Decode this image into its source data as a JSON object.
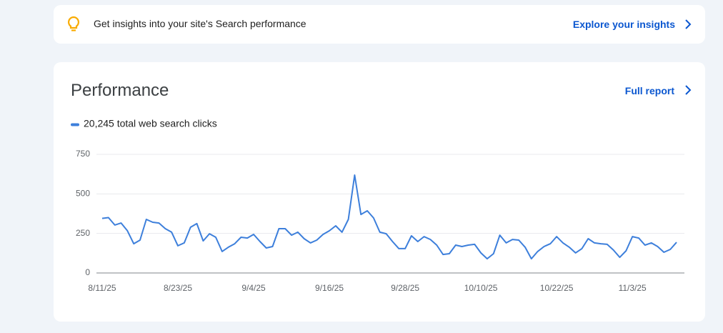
{
  "banner": {
    "text": "Get insights into your site's Search performance",
    "link": "Explore your insights"
  },
  "card": {
    "title": "Performance",
    "link": "Full report"
  },
  "chart_data": {
    "type": "line",
    "categories": [
      "8/11/25",
      null,
      null,
      null,
      null,
      null,
      null,
      null,
      null,
      null,
      null,
      null,
      "8/23/25",
      null,
      null,
      null,
      null,
      null,
      null,
      null,
      null,
      null,
      null,
      null,
      "9/4/25",
      null,
      null,
      null,
      null,
      null,
      null,
      null,
      null,
      null,
      null,
      null,
      "9/16/25",
      null,
      null,
      null,
      null,
      null,
      null,
      null,
      null,
      null,
      null,
      null,
      "9/28/25",
      null,
      null,
      null,
      null,
      null,
      null,
      null,
      null,
      null,
      null,
      null,
      "10/10/25",
      null,
      null,
      null,
      null,
      null,
      null,
      null,
      null,
      null,
      null,
      null,
      "10/22/25",
      null,
      null,
      null,
      null,
      null,
      null,
      null,
      null,
      null,
      null,
      null,
      "11/3/25",
      null,
      null,
      null,
      null,
      null,
      null,
      null
    ],
    "series": [
      {
        "name": "20,245 total web search clicks",
        "color": "#3d7fdb",
        "values": [
          345,
          350,
          303,
          316,
          267,
          185,
          208,
          339,
          321,
          316,
          280,
          258,
          172,
          190,
          289,
          312,
          203,
          248,
          226,
          136,
          163,
          185,
          226,
          221,
          244,
          199,
          158,
          167,
          280,
          280,
          239,
          258,
          217,
          190,
          208,
          244,
          267,
          298,
          258,
          339,
          619,
          370,
          393,
          348,
          258,
          248,
          199,
          154,
          154,
          235,
          199,
          230,
          212,
          176,
          117,
          122,
          176,
          167,
          176,
          181,
          127,
          90,
          122,
          239,
          190,
          212,
          208,
          163,
          90,
          136,
          167,
          185,
          230,
          190,
          163,
          127,
          154,
          217,
          190,
          185,
          181,
          145,
          99,
          140,
          230,
          221,
          176,
          190,
          167,
          131,
          149,
          194
        ]
      }
    ],
    "ylim": [
      0,
      750
    ],
    "yticks": [
      0,
      250,
      500,
      750
    ],
    "grid": true
  }
}
